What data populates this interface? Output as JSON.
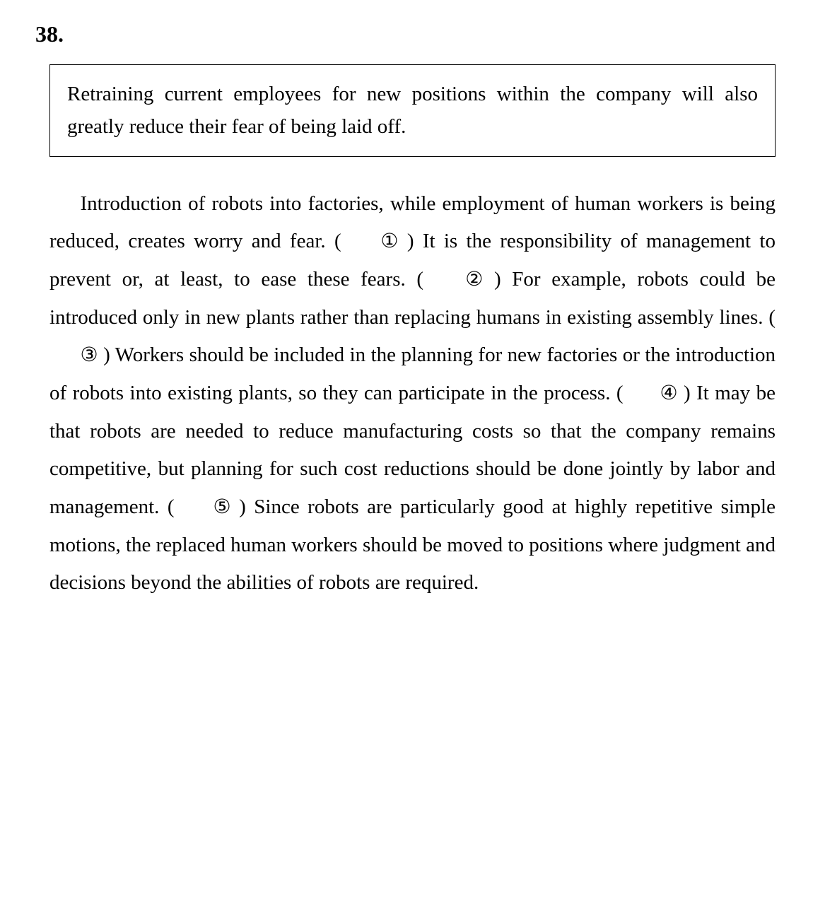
{
  "question": {
    "number": "38.",
    "boxed_text": "Retraining current employees for new positions within the company will also greatly reduce their fear of being laid off.",
    "passage_parts": [
      "Introduction of robots into factories, while employment of human workers is being reduced, creates worry and fear. ( ",
      " ) It is the responsibility of management to prevent or, at least, to ease these fears. ( ",
      " ) For example, robots could be introduced only in new plants rather than replacing humans in existing assembly lines. ( ",
      " ) Workers should be included in the planning for new factories or the introduction of robots into existing plants, so they can participate in the process. ( ",
      " ) It may be that robots are needed to reduce manufacturing costs so that the company remains competitive, but planning for such cost reductions should be done jointly by labor and management. ( ",
      " ) Since robots are particularly good at highly repetitive simple motions, the replaced human workers should be moved to positions where judgment and decisions beyond the abilities of robots are required."
    ],
    "markers": [
      "①",
      "②",
      "③",
      "④",
      "⑤"
    ]
  },
  "styling": {
    "font_family": "Georgia, Times New Roman, serif",
    "text_color": "#000000",
    "background_color": "#ffffff",
    "question_number_fontsize": 32,
    "boxed_border_color": "#000000",
    "boxed_border_width": 1.5,
    "boxed_fontsize": 29,
    "passage_fontsize": 29,
    "passage_line_height": 1.85,
    "text_indent_em": 1.5
  }
}
